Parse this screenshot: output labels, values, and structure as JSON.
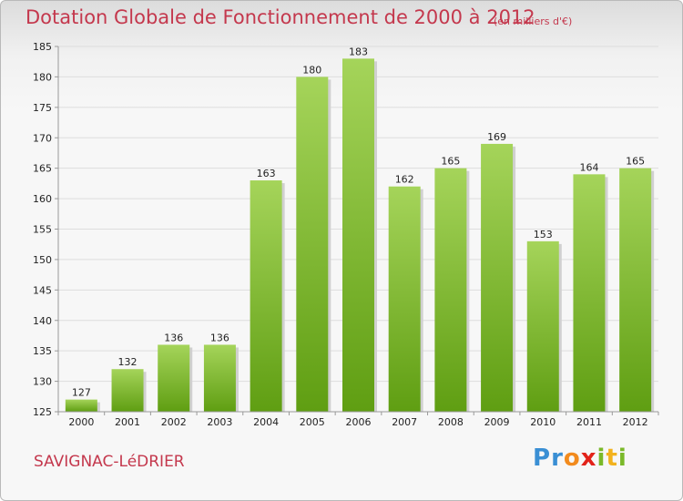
{
  "header": {
    "title": "Dotation Globale de Fonctionnement de 2000 à 2012",
    "unit": "(en milliers d'€)"
  },
  "footer": {
    "commune": "SAVIGNAC-LéDRIER",
    "logo_letters": [
      {
        "char": "P",
        "color": "#3a8fd4"
      },
      {
        "char": "r",
        "color": "#3a8fd4"
      },
      {
        "char": "o",
        "color": "#f28b1e"
      },
      {
        "char": "x",
        "color": "#e2231a"
      },
      {
        "char": "i",
        "color": "#7ab929"
      },
      {
        "char": "t",
        "color": "#f2b21e"
      },
      {
        "char": "i",
        "color": "#7ab929"
      }
    ]
  },
  "colors": {
    "title": "#c4384d",
    "bar_light": "#a5d45a",
    "bar_dark": "#5f9e12",
    "grid": "#dddddd",
    "axis": "#999999"
  },
  "chart_data": {
    "type": "bar",
    "title": "Dotation Globale de Fonctionnement de 2000 à 2012",
    "subtitle": "(en milliers d'€)",
    "xlabel": "",
    "ylabel": "",
    "categories": [
      "2000",
      "2001",
      "2002",
      "2003",
      "2004",
      "2005",
      "2006",
      "2007",
      "2008",
      "2009",
      "2010",
      "2011",
      "2012"
    ],
    "values": [
      127,
      132,
      136,
      136,
      163,
      180,
      183,
      162,
      165,
      169,
      153,
      164,
      165
    ],
    "data_labels": [
      "127",
      "132",
      "136",
      "136",
      "163",
      "180",
      "183",
      "162",
      "165",
      "169",
      "153",
      "164",
      "165"
    ],
    "ylim": [
      125,
      185
    ],
    "yticks": [
      125,
      130,
      135,
      140,
      145,
      150,
      155,
      160,
      165,
      170,
      175,
      180,
      185
    ],
    "grid": true,
    "legend": "none"
  }
}
